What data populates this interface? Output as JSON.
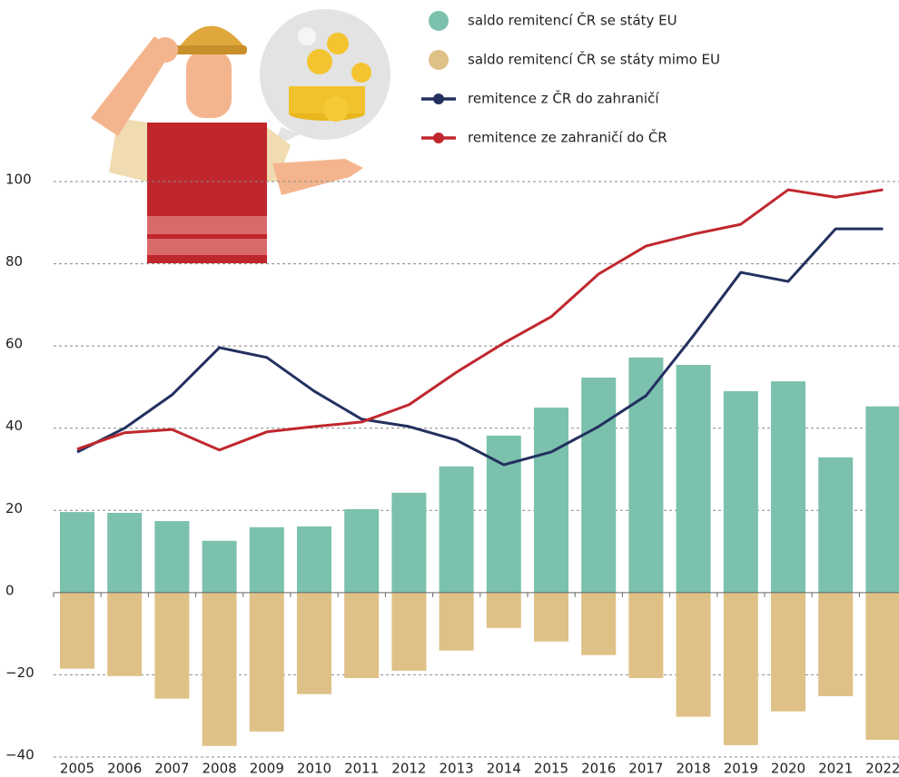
{
  "chart_data": {
    "type": "bar",
    "categories": [
      "2005",
      "2006",
      "2007",
      "2008",
      "2009",
      "2010",
      "2011",
      "2012",
      "2013",
      "2014",
      "2015",
      "2016",
      "2017",
      "2018",
      "2019",
      "2020",
      "2021",
      "2022"
    ],
    "series": [
      {
        "name": "saldo remitencí ČR se státy EU",
        "type": "bar",
        "color": "#7bc1ad",
        "values": [
          19.6,
          19.4,
          17.4,
          12.6,
          15.9,
          16.1,
          20.3,
          24.3,
          30.7,
          38.2,
          45,
          52.3,
          57.2,
          55.4,
          49,
          51.4,
          32.9,
          45.3
        ]
      },
      {
        "name": "saldo remitencí ČR se státy mimo EU",
        "type": "bar",
        "color": "#dfc187",
        "values": [
          -18.5,
          -20.3,
          -25.8,
          -37.3,
          -33.8,
          -24.7,
          -20.8,
          -19,
          -14.1,
          -8.6,
          -11.9,
          -15.2,
          -20.8,
          -30.2,
          -37.1,
          -28.9,
          -25.2,
          -35.8
        ]
      },
      {
        "name": "remitence z ČR do zahraničí",
        "type": "line",
        "color": "#23305f",
        "values": [
          34.2,
          40,
          48.1,
          59.6,
          57.2,
          49,
          42.2,
          40.4,
          37.1,
          31.1,
          34.2,
          40.4,
          47.9,
          62.5,
          77.9,
          75.7,
          88.5,
          88.5
        ]
      },
      {
        "name": "remitence ze zahraničí do ČR",
        "type": "line",
        "color": "#c0272d",
        "values": [
          34.9,
          38.9,
          39.7,
          34.7,
          39.1,
          40.4,
          41.5,
          45.7,
          53.6,
          60.7,
          67.1,
          77.5,
          84.3,
          87.2,
          89.6,
          98,
          96.2,
          98
        ]
      }
    ],
    "ylim": [
      -40,
      100
    ],
    "yticks": [
      {
        "value": -40,
        "label": "−40"
      },
      {
        "value": -20,
        "label": "−20"
      },
      0,
      20,
      40,
      60,
      80,
      100
    ],
    "grid": true
  }
}
